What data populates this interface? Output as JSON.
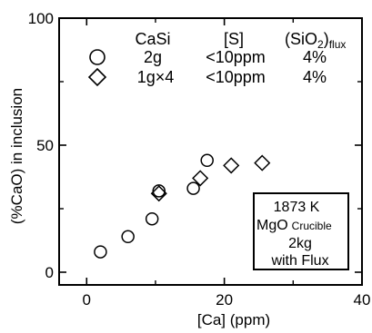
{
  "chart_data": {
    "type": "scatter",
    "xlabel": "[Ca] (ppm)",
    "ylabel": "(%CaO) in inclusion",
    "xlim": [
      -4,
      40
    ],
    "ylim": [
      -5,
      100
    ],
    "x_ticks": [
      {
        "value": 0,
        "label": "0"
      },
      {
        "value": 20,
        "label": "20"
      },
      {
        "value": 40,
        "label": "40"
      }
    ],
    "y_ticks": [
      {
        "value": 0,
        "label": "0"
      },
      {
        "value": 50,
        "label": "50"
      },
      {
        "value": 100,
        "label": "100"
      }
    ],
    "grid": false,
    "legend": {
      "placement": "top",
      "headers": {
        "casi": "CaSi",
        "s": "[S]",
        "sio2": "(SiO",
        "sio2_sub": "2",
        "sio2_close": ")",
        "sio2_flux": "flux"
      },
      "rows": [
        {
          "marker": "circle",
          "casi": "2g",
          "s": "<10ppm",
          "sio2": "4%"
        },
        {
          "marker": "diamond",
          "casi": "1g×4",
          "s": "<10ppm",
          "sio2": "4%"
        }
      ]
    },
    "annotation": {
      "line1": "1873 K",
      "line2_main": "MgO",
      "line2_sub": "Crucible",
      "line3": "2kg",
      "line4": "with Flux"
    },
    "series": [
      {
        "marker": "circle",
        "points": [
          {
            "x": 2,
            "y": 8
          },
          {
            "x": 6,
            "y": 14
          },
          {
            "x": 9.5,
            "y": 21
          },
          {
            "x": 10.5,
            "y": 32
          },
          {
            "x": 15.5,
            "y": 33
          },
          {
            "x": 17.5,
            "y": 44
          }
        ]
      },
      {
        "marker": "diamond",
        "points": [
          {
            "x": 10.5,
            "y": 31
          },
          {
            "x": 16.5,
            "y": 37
          },
          {
            "x": 21,
            "y": 42
          },
          {
            "x": 25.5,
            "y": 43
          }
        ]
      }
    ]
  }
}
